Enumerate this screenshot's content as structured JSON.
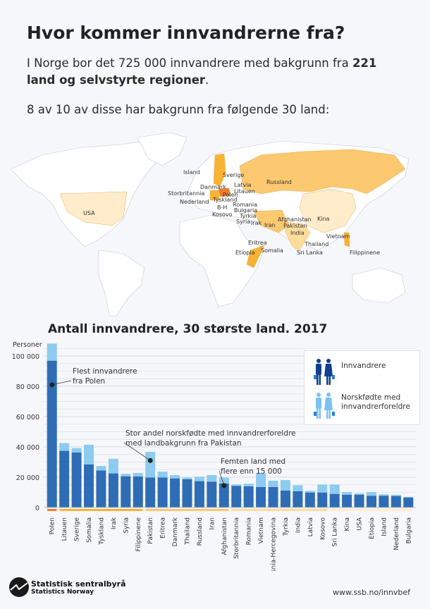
{
  "header": {
    "title": "Hvor kommer innvandrerne fra?",
    "intro_prefix": "I Norge bor det 725 000 innvandrere med bakgrunn fra",
    "intro_bold": "221 land og selvstyrte regioner",
    "intro_suffix": ".",
    "subtitle": "8 av 10 av disse har bakgrunn fra følgende 30 land:"
  },
  "map": {
    "labels": [
      "Island",
      "Sverige",
      "Latvia",
      "Litauen",
      "Russland",
      "Danmark",
      "Storbritannia",
      "Polen",
      "Nederland",
      "Tyskland",
      "Romania",
      "B-H",
      "Bulgaria",
      "Kosovo",
      "Tyrkia",
      "Syria",
      "Irak",
      "Iran",
      "Afghanistan",
      "Pakistan",
      "India",
      "Kina",
      "Eritrea",
      "Somalia",
      "Etiopia",
      "Vietnam",
      "Thailand",
      "Sri Lanka",
      "Filippinene",
      "USA"
    ],
    "tier_colors": [
      "#f07e2c",
      "#f9b233",
      "#fcc870",
      "#fddc9c",
      "#feecca"
    ]
  },
  "chart_data": {
    "type": "bar",
    "stacked": true,
    "title": "Antall innvandrere, 30 største land. 2017",
    "ylabel": "Personer",
    "ylim": [
      0,
      110000
    ],
    "yticks": [
      0,
      20000,
      40000,
      60000,
      80000,
      100000
    ],
    "ytick_labels": [
      "0",
      "20 000",
      "40 000",
      "60 000",
      "80 000",
      "100 000"
    ],
    "grid": true,
    "categories": [
      "Polen",
      "Litauen",
      "Sverige",
      "Somalia",
      "Tyskland",
      "Irak",
      "Syria",
      "Filippinene",
      "Pakistan",
      "Eritrea",
      "Danmark",
      "Thailand",
      "Russland",
      "Iran",
      "Afghanistan",
      "Storbritannia",
      "Romania",
      "Vietnam",
      "Bosnia-Hercegovina",
      "Tyrkia",
      "India",
      "Latvia",
      "Kosovo",
      "Sri Lanka",
      "Kina",
      "USA",
      "Etiopia",
      "Island",
      "Nederland",
      "Bulgaria"
    ],
    "series": [
      {
        "name": "Innvandrere",
        "color": "#2e6db5",
        "values": [
          96900,
          37400,
          36300,
          28500,
          24500,
          22500,
          20600,
          20500,
          19800,
          19800,
          19200,
          18700,
          17400,
          17100,
          15900,
          14300,
          14000,
          13600,
          13600,
          11200,
          10700,
          9900,
          9900,
          9000,
          8400,
          8400,
          7800,
          7800,
          7600,
          6600
        ]
      },
      {
        "name": "Norskfødte med innvandrerforeldre",
        "color": "#8ecbf0",
        "values": [
          11300,
          5100,
          2900,
          12900,
          2900,
          9700,
          1600,
          2300,
          16900,
          3900,
          2200,
          1000,
          2900,
          4300,
          3800,
          900,
          1700,
          9000,
          4100,
          6900,
          4000,
          1100,
          5300,
          6200,
          1800,
          900,
          2400,
          900,
          800,
          500
        ]
      }
    ],
    "group_colors": [
      "#f07e2c",
      "#f9b233",
      "#fcc870",
      "#fddc9c",
      "#feecca"
    ],
    "groups": [
      [
        0,
        0
      ],
      [
        1,
        7
      ],
      [
        8,
        14
      ],
      [
        15,
        22
      ],
      [
        23,
        29
      ]
    ],
    "legend": {
      "placement": "top-right",
      "items": [
        "Innvandrere",
        "Norskfødte med innvandrerforeldre"
      ]
    },
    "annotations": [
      {
        "text": [
          "Flest innvandrere",
          "fra Polen"
        ],
        "category": "Polen",
        "y": 81000
      },
      {
        "text": [
          "Stor andel norskfødte med innvandrerforeldre",
          "med landbakgrunn fra Pakistan"
        ],
        "category": "Pakistan",
        "y": 31000
      },
      {
        "text": [
          "Femten land med",
          "flere enn 15 000"
        ],
        "category": "Afghanistan",
        "y": 14500
      }
    ]
  },
  "footer": {
    "org_name": "Statistisk sentralbyrå",
    "org_name_en": "Statistics Norway",
    "url": "www.ssb.no/innvbef"
  }
}
